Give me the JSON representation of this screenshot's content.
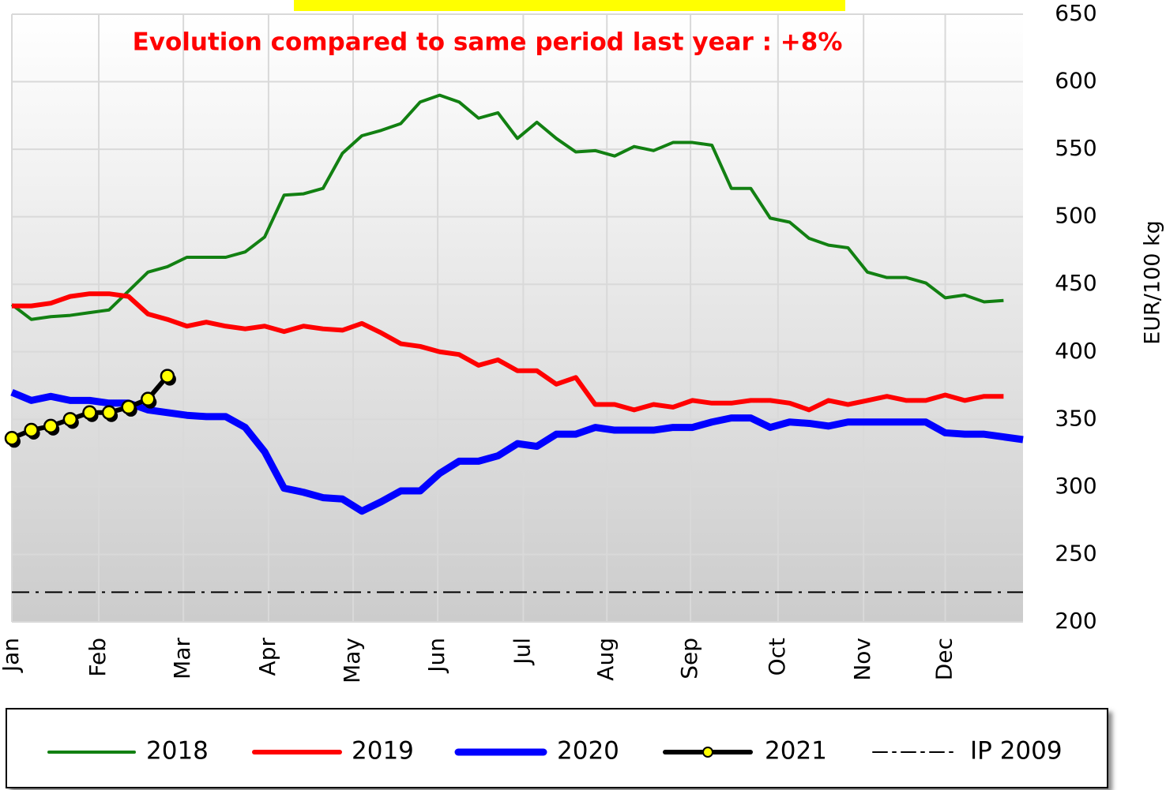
{
  "chart_data": {
    "type": "line",
    "subtitle": "Evolution compared to same period last year : +8%",
    "y_label": "EUR/100 kg",
    "x": [
      1,
      2,
      3,
      4,
      5,
      6,
      7,
      8,
      9,
      10,
      11,
      12,
      13,
      14,
      15,
      16,
      17,
      18,
      19,
      20,
      21,
      22,
      23,
      24,
      25,
      26,
      27,
      28,
      29,
      30,
      31,
      32,
      33,
      34,
      35,
      36,
      37,
      38,
      39,
      40,
      41,
      42,
      43,
      44,
      45,
      46,
      47,
      48,
      49,
      50,
      51,
      52,
      53
    ],
    "xlim": [
      1,
      53
    ],
    "xticks": [
      {
        "value": 1,
        "label": "Jan"
      },
      {
        "value": 5.47,
        "label": "Feb"
      },
      {
        "value": 9.82,
        "label": "Mar"
      },
      {
        "value": 14.2,
        "label": "Apr"
      },
      {
        "value": 18.55,
        "label": "May"
      },
      {
        "value": 22.9,
        "label": "Jun"
      },
      {
        "value": 27.3,
        "label": "Jul"
      },
      {
        "value": 31.6,
        "label": "Aug"
      },
      {
        "value": 35.9,
        "label": "Sep"
      },
      {
        "value": 40.4,
        "label": "Oct"
      },
      {
        "value": 44.8,
        "label": "Nov"
      },
      {
        "value": 49.0,
        "label": "Dec"
      }
    ],
    "ylim": [
      200,
      650
    ],
    "yticks": [
      200,
      250,
      300,
      350,
      400,
      450,
      500,
      550,
      600,
      650
    ],
    "grid": true,
    "legend": "bottom",
    "series": [
      {
        "name": "2018",
        "color": "#128012",
        "values": [
          435,
          424,
          426,
          427,
          429,
          431,
          445,
          459,
          463,
          470,
          470,
          470,
          474,
          485,
          516,
          517,
          521,
          547,
          560,
          564,
          569,
          585,
          590,
          585,
          573,
          577,
          558,
          570,
          558,
          548,
          549,
          545,
          552,
          549,
          555,
          555,
          553,
          521,
          521,
          499,
          496,
          484,
          479,
          477,
          459,
          455,
          455,
          451,
          440,
          442,
          437,
          438,
          null
        ]
      },
      {
        "name": "2019",
        "color": "#ff0000",
        "values": [
          434,
          434,
          436,
          441,
          443,
          443,
          441,
          428,
          424,
          419,
          422,
          419,
          417,
          419,
          415,
          419,
          417,
          416,
          421,
          414,
          406,
          404,
          400,
          398,
          390,
          394,
          386,
          386,
          376,
          381,
          361,
          361,
          357,
          361,
          359,
          364,
          362,
          362,
          364,
          364,
          362,
          357,
          364,
          361,
          364,
          367,
          364,
          364,
          368,
          364,
          367,
          367,
          null
        ]
      },
      {
        "name": "2020",
        "color": "#0000ff",
        "values": [
          370,
          364,
          367,
          364,
          364,
          362,
          362,
          357,
          355,
          353,
          352,
          352,
          344,
          326,
          299,
          296,
          292,
          291,
          282,
          289,
          297,
          297,
          310,
          319,
          319,
          323,
          332,
          330,
          339,
          339,
          344,
          342,
          342,
          342,
          344,
          344,
          348,
          351,
          351,
          344,
          348,
          347,
          345,
          348,
          348,
          348,
          348,
          348,
          340,
          339,
          339,
          337,
          335
        ]
      },
      {
        "name": "2021",
        "color": "#000000",
        "marker_color": "#ffff00",
        "values": [
          336,
          342,
          345,
          350,
          355,
          355,
          359,
          365,
          382,
          null,
          null,
          null,
          null,
          null,
          null,
          null,
          null,
          null,
          null,
          null,
          null,
          null,
          null,
          null,
          null,
          null,
          null,
          null,
          null,
          null,
          null,
          null,
          null,
          null,
          null,
          null,
          null,
          null,
          null,
          null,
          null,
          null,
          null,
          null,
          null,
          null,
          null,
          null,
          null,
          null,
          null,
          null,
          null
        ]
      }
    ],
    "reference_lines": [
      {
        "name": "IP 2009",
        "value": 222,
        "color": "#000000",
        "style": "dash-dot"
      }
    ]
  }
}
